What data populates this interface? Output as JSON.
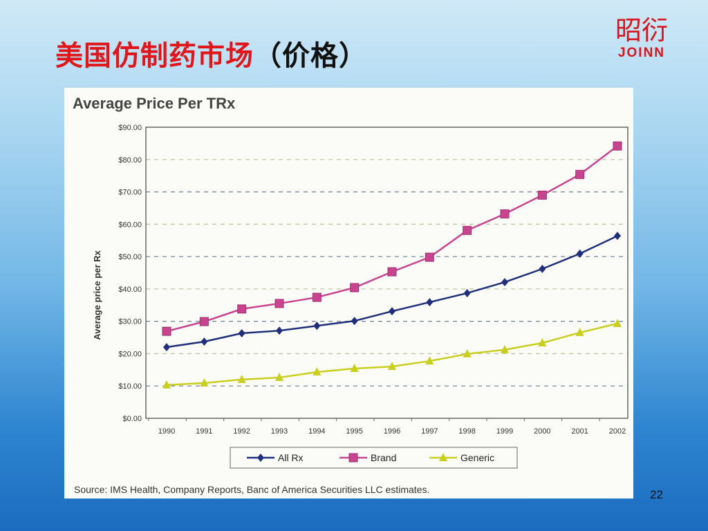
{
  "slide": {
    "title_main": "美国仿制药市场",
    "title_paren": "（价格）",
    "logo_cn": "昭衍",
    "logo_en": "JOINN",
    "page_number": "22"
  },
  "chart_data": {
    "type": "line",
    "title": "Average Price Per TRx",
    "xlabel": "",
    "ylabel": "Average price per Rx",
    "categories": [
      "1990",
      "1991",
      "1992",
      "1993",
      "1994",
      "1995",
      "1996",
      "1997",
      "1998",
      "1999",
      "2000",
      "2001",
      "2002"
    ],
    "ylim": [
      0,
      90
    ],
    "yticks": [
      "$0.00",
      "$10.00",
      "$20.00",
      "$30.00",
      "$40.00",
      "$50.00",
      "$60.00",
      "$70.00",
      "$80.00",
      "$90.00"
    ],
    "grid": true,
    "legend_placement": "bottom",
    "series": [
      {
        "name": "All Rx",
        "color": "#1f2f7a",
        "marker": "diamond",
        "values": [
          22.0,
          23.7,
          26.3,
          27.1,
          28.6,
          30.1,
          33.1,
          35.9,
          38.7,
          42.1,
          46.2,
          50.9,
          56.4
        ]
      },
      {
        "name": "Brand",
        "color": "#c8448f",
        "marker": "square",
        "values": [
          26.9,
          29.9,
          33.8,
          35.5,
          37.4,
          40.4,
          45.3,
          49.8,
          58.1,
          63.2,
          69.0,
          75.4,
          84.2
        ]
      },
      {
        "name": "Generic",
        "color": "#c9cf1e",
        "marker": "triangle",
        "values": [
          10.3,
          10.9,
          12.0,
          12.6,
          14.3,
          15.4,
          16.0,
          17.7,
          19.9,
          21.2,
          23.3,
          26.5,
          29.3
        ]
      }
    ],
    "source": "Source: IMS Health, Company Reports, Banc of America Securities LLC estimates."
  }
}
